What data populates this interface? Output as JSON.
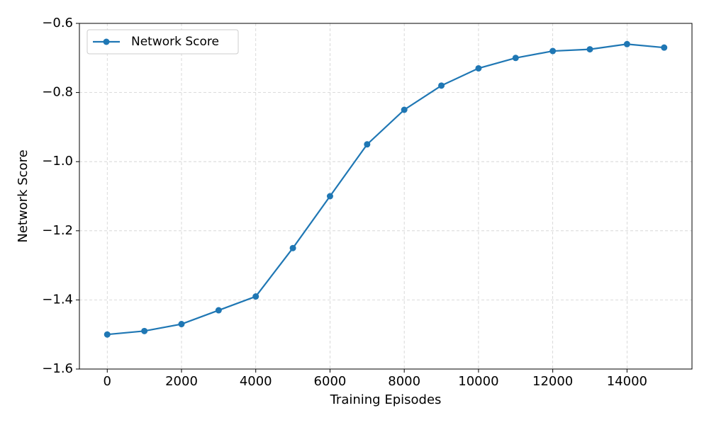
{
  "chart_data": {
    "type": "line",
    "x_label": "Training Episodes",
    "y_label": "Network Score",
    "x": [
      0,
      1000,
      2000,
      3000,
      4000,
      5000,
      6000,
      7000,
      8000,
      9000,
      10000,
      11000,
      12000,
      13000,
      14000,
      15000
    ],
    "series": [
      {
        "name": "Network Score",
        "color": "#1f77b4",
        "values": [
          -1.5,
          -1.49,
          -1.47,
          -1.43,
          -1.39,
          -1.25,
          -1.1,
          -0.95,
          -0.85,
          -0.78,
          -0.73,
          -0.7,
          -0.68,
          -0.675,
          -0.66,
          -0.67
        ]
      }
    ],
    "xlim": [
      -750,
      15750
    ],
    "xticks": [
      0,
      2000,
      4000,
      6000,
      8000,
      10000,
      12000,
      14000
    ],
    "ylim": [
      -1.6,
      -0.6
    ],
    "yticks": [
      {
        "value": -1.6,
        "label": "−1.6"
      },
      {
        "value": -1.4,
        "label": "−1.4"
      },
      {
        "value": -1.2,
        "label": "−1.2"
      },
      {
        "value": -1.0,
        "label": "−1.0"
      },
      {
        "value": -0.8,
        "label": "−0.8"
      },
      {
        "value": -0.6,
        "label": "−0.6"
      }
    ],
    "grid": true,
    "legend": "upper-left"
  }
}
